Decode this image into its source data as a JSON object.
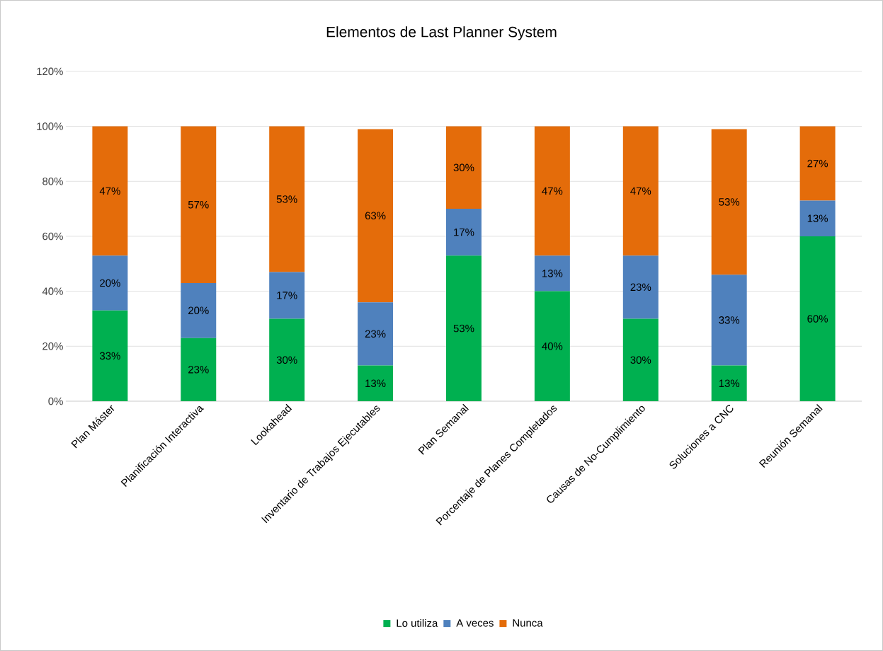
{
  "chart_data": {
    "type": "bar",
    "stacked": true,
    "title": "Elementos de Last Planner System",
    "categories": [
      "Plan Máster",
      "Planificación Interactiva",
      "Lookahead",
      "Inventario de Trabajos Ejecutables",
      "Plan Semanal",
      "Porcentaje de Planes Completados",
      "Causas de No-Cumplimiento",
      "Soluciones a CNC",
      "Reunión Semanal"
    ],
    "series": [
      {
        "name": "Lo utiliza",
        "color": "#00b050",
        "values": [
          33,
          23,
          30,
          13,
          53,
          40,
          30,
          13,
          60
        ],
        "value_labels": [
          "33%",
          "23%",
          "30%",
          "13%",
          "53%",
          "40%",
          "30%",
          "13%",
          "60%"
        ]
      },
      {
        "name": "A veces",
        "color": "#4f81bd",
        "values": [
          20,
          20,
          17,
          23,
          17,
          13,
          23,
          33,
          13
        ],
        "value_labels": [
          "20%",
          "20%",
          "17%",
          "23%",
          "17%",
          "13%",
          "23%",
          "33%",
          "13%"
        ]
      },
      {
        "name": "Nunca",
        "color": "#e46c0a",
        "values": [
          47,
          57,
          53,
          63,
          30,
          47,
          47,
          53,
          27
        ],
        "value_labels": [
          "47%",
          "57%",
          "53%",
          "63%",
          "30%",
          "47%",
          "47%",
          "53%",
          "27%"
        ]
      }
    ],
    "ylim": [
      0,
      120
    ],
    "yticks": [
      {
        "value": 0,
        "label": "0%"
      },
      {
        "value": 20,
        "label": "20%"
      },
      {
        "value": 40,
        "label": "40%"
      },
      {
        "value": 60,
        "label": "60%"
      },
      {
        "value": 80,
        "label": "80%"
      },
      {
        "value": 100,
        "label": "100%"
      },
      {
        "value": 120,
        "label": "120%"
      }
    ],
    "grid": "y",
    "legend": "bottom"
  }
}
